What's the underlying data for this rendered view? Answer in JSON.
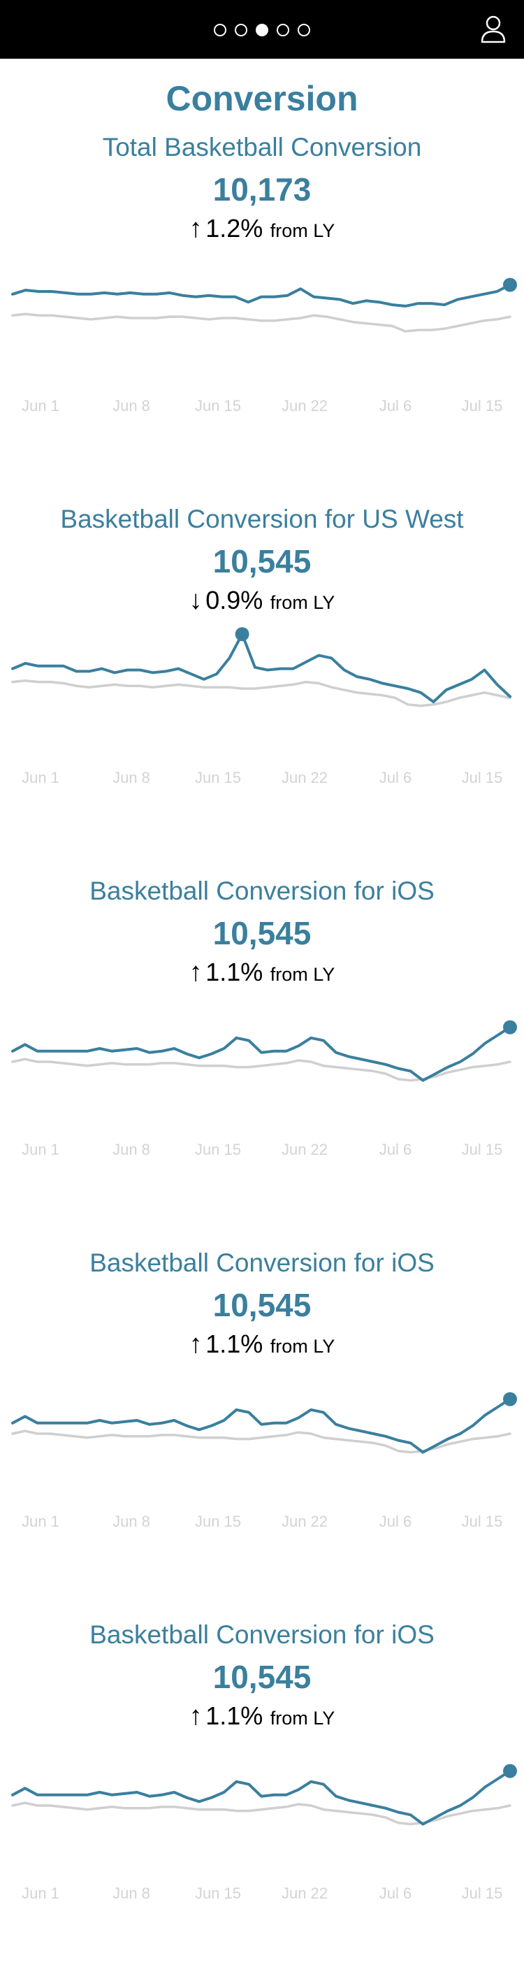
{
  "header": {
    "pager": {
      "pages": 5,
      "active": 2
    },
    "user_icon": "user-icon"
  },
  "page": {
    "title": "Conversion"
  },
  "sections": [
    {
      "title": "Total Basketball Conversion",
      "value": "10,173",
      "direction": "up",
      "arrow": "↑",
      "change": "1.2%",
      "from": "from LY"
    },
    {
      "title": "Basketball Conversion for US West",
      "value": "10,545",
      "direction": "down",
      "arrow": "↓",
      "change": "0.9%",
      "from": "from LY"
    },
    {
      "title": "Basketball Conversion for iOS",
      "value": "10,545",
      "direction": "up",
      "arrow": "↑",
      "change": "1.1%",
      "from": "from LY"
    },
    {
      "title": "Basketball Conversion for iOS",
      "value": "10,545",
      "direction": "up",
      "arrow": "↑",
      "change": "1.1%",
      "from": "from LY"
    },
    {
      "title": "Basketball Conversion for iOS",
      "value": "10,545",
      "direction": "up",
      "arrow": "↑",
      "change": "1.1%",
      "from": "from LY"
    }
  ],
  "colors": {
    "current": "#3a7f9e",
    "last_year": "#cfcfcf",
    "tick": "#d3d3d3"
  },
  "chart_data": [
    {
      "type": "line",
      "x_ticks": [
        "Jun 1",
        "Jun 8",
        "Jun 15",
        "Jun 22",
        "Jul 6",
        "Jul 15"
      ],
      "ylim": [
        0,
        100
      ],
      "series": [
        {
          "values": [
            68,
            71,
            70,
            70,
            69,
            68,
            68,
            69,
            68,
            69,
            68,
            68,
            69,
            67,
            66,
            67,
            66,
            66,
            62,
            66,
            66,
            67,
            72,
            66,
            65,
            64,
            61,
            63,
            62,
            60,
            59,
            61,
            61,
            60,
            64,
            66,
            68,
            70,
            75
          ]
        },
        {
          "values": [
            52,
            53,
            52,
            52,
            51,
            50,
            49,
            50,
            51,
            50,
            50,
            50,
            51,
            51,
            50,
            49,
            50,
            50,
            49,
            48,
            48,
            49,
            50,
            52,
            51,
            49,
            47,
            46,
            45,
            44,
            40,
            41,
            41,
            42,
            44,
            46,
            48,
            49,
            51
          ]
        }
      ],
      "highlight_index": 38
    },
    {
      "type": "line",
      "x_ticks": [
        "Jun 1",
        "Jun 8",
        "Jun 15",
        "Jun 22",
        "Jul 6",
        "Jul 15"
      ],
      "ylim": [
        0,
        100
      ],
      "series": [
        {
          "values": [
            66,
            70,
            68,
            68,
            68,
            64,
            64,
            66,
            63,
            65,
            65,
            63,
            64,
            66,
            62,
            58,
            62,
            74,
            92,
            67,
            65,
            66,
            66,
            71,
            76,
            74,
            65,
            60,
            58,
            55,
            53,
            51,
            48,
            41,
            50,
            54,
            58,
            65,
            54,
            45
          ]
        },
        {
          "values": [
            56,
            57,
            56,
            56,
            55,
            53,
            52,
            53,
            54,
            53,
            53,
            52,
            53,
            54,
            53,
            52,
            52,
            52,
            51,
            51,
            52,
            53,
            54,
            56,
            55,
            52,
            50,
            48,
            47,
            46,
            44,
            39,
            38,
            39,
            41,
            44,
            46,
            48,
            46,
            44
          ]
        }
      ],
      "highlight_index": 18
    },
    {
      "type": "line",
      "x_ticks": [
        "Jun 1",
        "Jun 8",
        "Jun 15",
        "Jun 22",
        "Jul 6",
        "Jul 15"
      ],
      "ylim": [
        0,
        100
      ],
      "series": [
        {
          "values": [
            58,
            63,
            58,
            58,
            58,
            58,
            58,
            60,
            58,
            59,
            60,
            57,
            58,
            60,
            56,
            53,
            56,
            60,
            68,
            66,
            57,
            58,
            58,
            62,
            68,
            66,
            57,
            54,
            52,
            50,
            48,
            45,
            43,
            36,
            41,
            46,
            50,
            56,
            64,
            70,
            76
          ]
        },
        {
          "values": [
            50,
            52,
            50,
            50,
            49,
            48,
            47,
            48,
            49,
            48,
            48,
            48,
            49,
            49,
            48,
            47,
            47,
            47,
            46,
            46,
            47,
            48,
            49,
            51,
            50,
            47,
            46,
            45,
            44,
            43,
            41,
            37,
            36,
            37,
            39,
            42,
            44,
            46,
            47,
            48,
            50
          ]
        }
      ],
      "highlight_index": 40
    },
    {
      "type": "line",
      "x_ticks": [
        "Jun 1",
        "Jun 8",
        "Jun 15",
        "Jun 22",
        "Jul 6",
        "Jul 15"
      ],
      "ylim": [
        0,
        100
      ],
      "series": [
        {
          "values": [
            58,
            63,
            58,
            58,
            58,
            58,
            58,
            60,
            58,
            59,
            60,
            57,
            58,
            60,
            56,
            53,
            56,
            60,
            68,
            66,
            57,
            58,
            58,
            62,
            68,
            66,
            57,
            54,
            52,
            50,
            48,
            45,
            43,
            36,
            41,
            46,
            50,
            56,
            64,
            70,
            76
          ]
        },
        {
          "values": [
            50,
            52,
            50,
            50,
            49,
            48,
            47,
            48,
            49,
            48,
            48,
            48,
            49,
            49,
            48,
            47,
            47,
            47,
            46,
            46,
            47,
            48,
            49,
            51,
            50,
            47,
            46,
            45,
            44,
            43,
            41,
            37,
            36,
            37,
            39,
            42,
            44,
            46,
            47,
            48,
            50
          ]
        }
      ],
      "highlight_index": 40
    },
    {
      "type": "line",
      "x_ticks": [
        "Jun 1",
        "Jun 8",
        "Jun 15",
        "Jun 22",
        "Jul 6",
        "Jul 15"
      ],
      "ylim": [
        0,
        100
      ],
      "series": [
        {
          "values": [
            58,
            63,
            58,
            58,
            58,
            58,
            58,
            60,
            58,
            59,
            60,
            57,
            58,
            60,
            56,
            53,
            56,
            60,
            68,
            66,
            57,
            58,
            58,
            62,
            68,
            66,
            57,
            54,
            52,
            50,
            48,
            45,
            43,
            36,
            41,
            46,
            50,
            56,
            64,
            70,
            76
          ]
        },
        {
          "values": [
            50,
            52,
            50,
            50,
            49,
            48,
            47,
            48,
            49,
            48,
            48,
            48,
            49,
            49,
            48,
            47,
            47,
            47,
            46,
            46,
            47,
            48,
            49,
            51,
            50,
            47,
            46,
            45,
            44,
            43,
            41,
            37,
            36,
            37,
            39,
            42,
            44,
            46,
            47,
            48,
            50
          ]
        }
      ],
      "highlight_index": 40
    }
  ]
}
